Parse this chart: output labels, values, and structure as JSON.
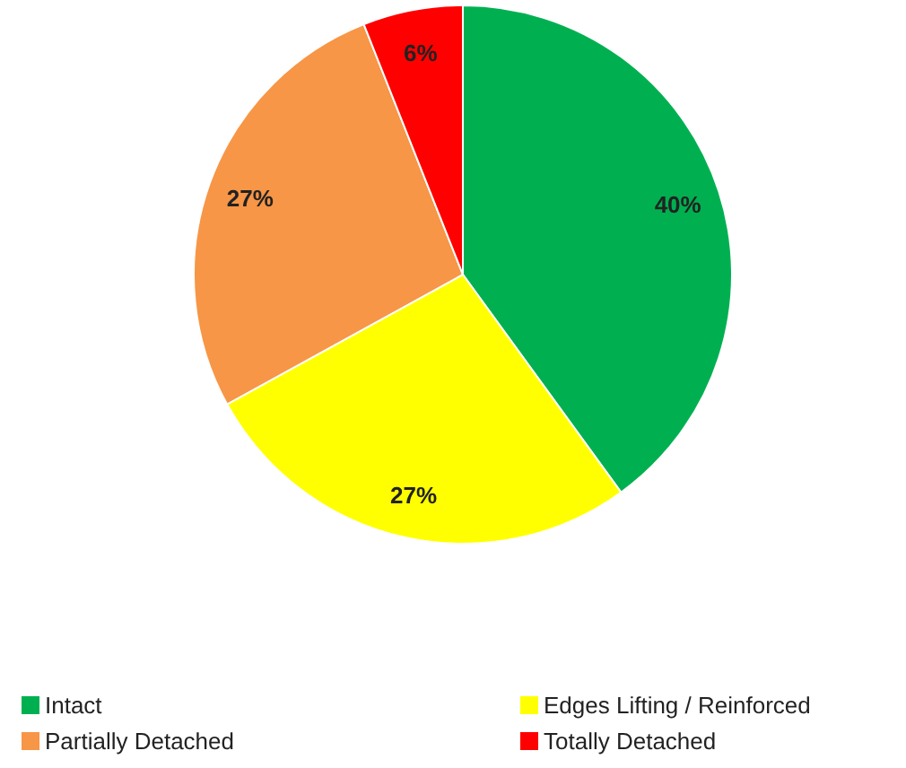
{
  "chart_data": {
    "type": "pie",
    "categories": [
      "Intact",
      "Edges Lifting / Reinforced",
      "Partially Detached",
      "Totally Detached"
    ],
    "values": [
      40,
      27,
      27,
      6
    ],
    "colors": [
      "#00b050",
      "#ffff00",
      "#f79646",
      "#ff0000"
    ],
    "value_labels": [
      "40%",
      "27%",
      "27%",
      "6%"
    ],
    "legend": "bottom"
  }
}
